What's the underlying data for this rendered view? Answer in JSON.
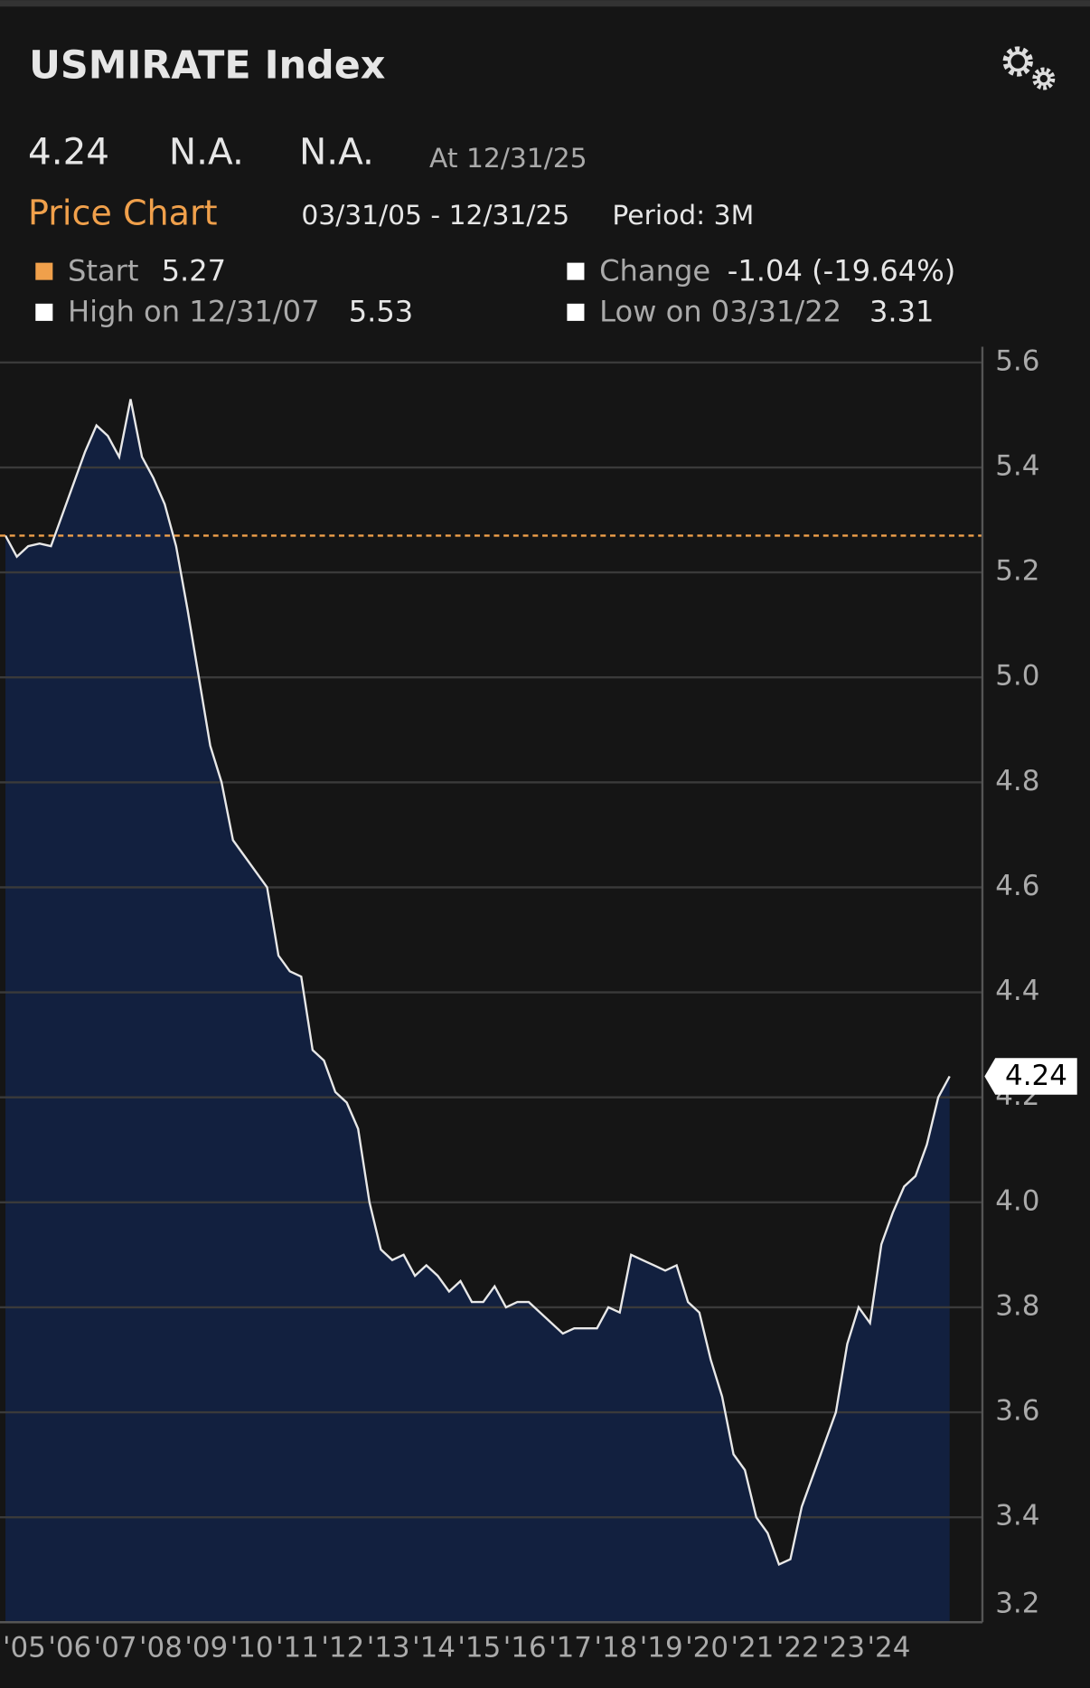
{
  "header": {
    "title": "USMIRATE Index",
    "last": "4.24",
    "field2": "N.A.",
    "field3": "N.A.",
    "as_of": "At 12/31/25"
  },
  "chart_data": {
    "type": "area",
    "tab": "Price Chart",
    "range": "03/31/05 - 12/31/25",
    "period": "Period: 3M",
    "stats": {
      "start": {
        "label": "Start",
        "value": 5.27
      },
      "change": {
        "label": "Change",
        "value": "-1.04 (-19.64%)"
      },
      "high": {
        "label": "High on 12/31/07",
        "value": 5.53
      },
      "low": {
        "label": "Low on 03/31/22",
        "value": 3.31
      }
    },
    "color": "#12203f",
    "line_color": "#e8e8e8",
    "start_color": "#f0a04b",
    "x": [
      2005.25,
      2005.5,
      2005.75,
      2006.0,
      2006.25,
      2006.5,
      2006.75,
      2007.0,
      2007.25,
      2007.5,
      2007.75,
      2008.0,
      2008.25,
      2008.5,
      2008.75,
      2009.0,
      2009.25,
      2009.5,
      2009.75,
      2010.0,
      2010.25,
      2010.5,
      2010.75,
      2011.0,
      2011.25,
      2011.5,
      2011.75,
      2012.0,
      2012.25,
      2012.5,
      2012.75,
      2013.0,
      2013.25,
      2013.5,
      2013.75,
      2014.0,
      2014.25,
      2014.5,
      2014.75,
      2015.0,
      2015.25,
      2015.5,
      2015.75,
      2016.0,
      2016.25,
      2016.5,
      2016.75,
      2017.0,
      2017.25,
      2017.5,
      2017.75,
      2018.0,
      2018.25,
      2018.5,
      2018.75,
      2019.0,
      2019.25,
      2019.5,
      2019.75,
      2020.0,
      2020.25,
      2020.5,
      2020.75,
      2021.0,
      2021.25,
      2021.5,
      2021.75,
      2022.0,
      2022.25,
      2022.5,
      2022.75,
      2023.0,
      2023.25,
      2023.5,
      2023.75,
      2024.0,
      2024.25,
      2024.5,
      2024.75,
      2025.0,
      2025.25,
      2025.5,
      2025.75,
      2026.0
    ],
    "values": [
      5.27,
      5.23,
      5.25,
      5.255,
      5.25,
      5.31,
      5.37,
      5.43,
      5.48,
      5.46,
      5.42,
      5.53,
      5.42,
      5.38,
      5.33,
      5.25,
      5.13,
      5.0,
      4.87,
      4.8,
      4.69,
      4.66,
      4.63,
      4.6,
      4.47,
      4.44,
      4.43,
      4.29,
      4.27,
      4.21,
      4.19,
      4.14,
      4.0,
      3.91,
      3.89,
      3.9,
      3.86,
      3.88,
      3.86,
      3.83,
      3.85,
      3.81,
      3.81,
      3.84,
      3.8,
      3.81,
      3.81,
      3.79,
      3.77,
      3.75,
      3.76,
      3.76,
      3.76,
      3.8,
      3.79,
      3.9,
      3.89,
      3.88,
      3.87,
      3.88,
      3.81,
      3.79,
      3.7,
      3.63,
      3.52,
      3.49,
      3.4,
      3.37,
      3.31,
      3.32,
      3.42,
      3.48,
      3.54,
      3.6,
      3.73,
      3.8,
      3.77,
      3.92,
      3.98,
      4.03,
      4.05,
      4.11,
      4.2,
      4.24
    ],
    "xlim": [
      2005.13,
      2026.72
    ],
    "xticks": [
      {
        "value": 2005,
        "label": "'05"
      },
      {
        "value": 2006,
        "label": "'06"
      },
      {
        "value": 2007,
        "label": "'07"
      },
      {
        "value": 2008,
        "label": "'08"
      },
      {
        "value": 2009,
        "label": "'09"
      },
      {
        "value": 2010,
        "label": "'10"
      },
      {
        "value": 2011,
        "label": "'11"
      },
      {
        "value": 2012,
        "label": "'12"
      },
      {
        "value": 2013,
        "label": "'13"
      },
      {
        "value": 2014,
        "label": "'14"
      },
      {
        "value": 2015,
        "label": "'15"
      },
      {
        "value": 2016,
        "label": "'16"
      },
      {
        "value": 2017,
        "label": "'17"
      },
      {
        "value": 2018,
        "label": "'18"
      },
      {
        "value": 2019,
        "label": "'19"
      },
      {
        "value": 2020,
        "label": "'20"
      },
      {
        "value": 2021,
        "label": "'21"
      },
      {
        "value": 2022,
        "label": "'22"
      },
      {
        "value": 2023,
        "label": "'23"
      },
      {
        "value": 2024,
        "label": "'24"
      }
    ],
    "ylim": [
      3.2,
      5.63
    ],
    "yticks": [
      5.6,
      5.4,
      5.2,
      {
        "value": 5,
        "label": "5.0"
      },
      4.8,
      4.6,
      4.4,
      4.2,
      {
        "value": 4,
        "label": "4.0"
      },
      3.8,
      3.6,
      3.4,
      3.2
    ],
    "grid": true
  }
}
